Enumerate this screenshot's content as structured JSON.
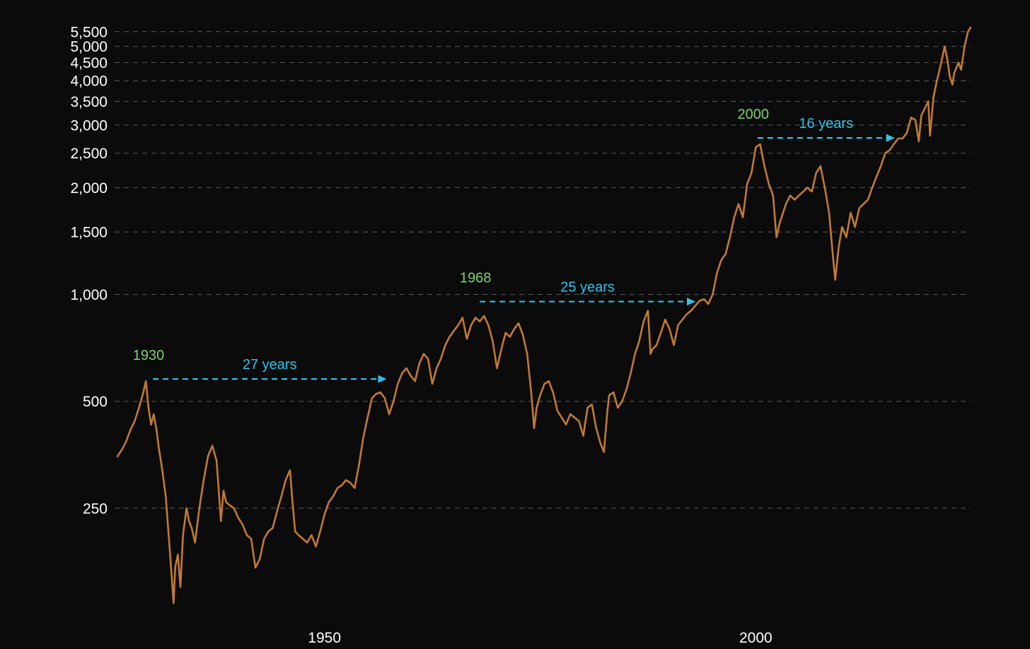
{
  "chart_data": {
    "type": "line",
    "title": "",
    "xlabel": "",
    "ylabel": "",
    "y_scale": "log",
    "ylim": [
      125,
      5700
    ],
    "xlim": [
      1926.0,
      2024.9
    ],
    "grid": true,
    "legend": "none",
    "colors": {
      "background": "#0b0b0b",
      "line": "#c27a35",
      "year_label": "#7ed36a",
      "duration_label": "#2fc3e8",
      "grid": "#5a5a5a",
      "tick": "#ffffff"
    },
    "y_ticks": [
      {
        "value": 250,
        "label": "250"
      },
      {
        "value": 500,
        "label": "500"
      },
      {
        "value": 1000,
        "label": "1,000"
      },
      {
        "value": 1500,
        "label": "1,500"
      },
      {
        "value": 2000,
        "label": "2,000"
      },
      {
        "value": 2500,
        "label": "2,500"
      },
      {
        "value": 3000,
        "label": "3,000"
      },
      {
        "value": 3500,
        "label": "3,500"
      },
      {
        "value": 4000,
        "label": "4,000"
      },
      {
        "value": 4500,
        "label": "4,500"
      },
      {
        "value": 5000,
        "label": "5,000"
      },
      {
        "value": 5500,
        "label": "5,500"
      }
    ],
    "x_ticks": [
      {
        "value": 1950,
        "label": "1950"
      },
      {
        "value": 2000,
        "label": "2000"
      }
    ],
    "series": [
      {
        "values": [
          [
            1926.0,
            350
          ],
          [
            1926.5,
            365
          ],
          [
            1927.0,
            385
          ],
          [
            1927.5,
            415
          ],
          [
            1928.0,
            440
          ],
          [
            1928.5,
            480
          ],
          [
            1929.0,
            530
          ],
          [
            1929.3,
            570
          ],
          [
            1929.6,
            480
          ],
          [
            1929.9,
            430
          ],
          [
            1930.2,
            460
          ],
          [
            1930.5,
            420
          ],
          [
            1930.8,
            370
          ],
          [
            1931.2,
            320
          ],
          [
            1931.6,
            270
          ],
          [
            1932.0,
            200
          ],
          [
            1932.3,
            160
          ],
          [
            1932.5,
            135
          ],
          [
            1932.7,
            170
          ],
          [
            1933.0,
            185
          ],
          [
            1933.3,
            150
          ],
          [
            1933.6,
            210
          ],
          [
            1934.0,
            250
          ],
          [
            1934.3,
            230
          ],
          [
            1934.6,
            220
          ],
          [
            1935.0,
            200
          ],
          [
            1935.5,
            250
          ],
          [
            1936.0,
            300
          ],
          [
            1936.5,
            350
          ],
          [
            1937.0,
            375
          ],
          [
            1937.5,
            340
          ],
          [
            1938.0,
            230
          ],
          [
            1938.3,
            280
          ],
          [
            1938.6,
            260
          ],
          [
            1939.0,
            255
          ],
          [
            1939.5,
            250
          ],
          [
            1940.0,
            235
          ],
          [
            1940.5,
            225
          ],
          [
            1941.0,
            210
          ],
          [
            1941.5,
            205
          ],
          [
            1942.0,
            170
          ],
          [
            1942.5,
            180
          ],
          [
            1943.0,
            205
          ],
          [
            1943.5,
            215
          ],
          [
            1944.0,
            220
          ],
          [
            1944.5,
            245
          ],
          [
            1945.0,
            270
          ],
          [
            1945.5,
            300
          ],
          [
            1946.0,
            320
          ],
          [
            1946.3,
            260
          ],
          [
            1946.6,
            215
          ],
          [
            1947.0,
            210
          ],
          [
            1947.5,
            205
          ],
          [
            1948.0,
            200
          ],
          [
            1948.5,
            210
          ],
          [
            1949.0,
            195
          ],
          [
            1949.5,
            215
          ],
          [
            1950.0,
            240
          ],
          [
            1950.5,
            260
          ],
          [
            1951.0,
            270
          ],
          [
            1951.5,
            285
          ],
          [
            1952.0,
            290
          ],
          [
            1952.5,
            300
          ],
          [
            1953.0,
            295
          ],
          [
            1953.5,
            285
          ],
          [
            1954.0,
            330
          ],
          [
            1954.5,
            395
          ],
          [
            1955.0,
            450
          ],
          [
            1955.5,
            510
          ],
          [
            1956.0,
            525
          ],
          [
            1956.5,
            530
          ],
          [
            1957.0,
            510
          ],
          [
            1957.5,
            460
          ],
          [
            1958.0,
            500
          ],
          [
            1958.5,
            560
          ],
          [
            1959.0,
            600
          ],
          [
            1959.5,
            620
          ],
          [
            1960.0,
            590
          ],
          [
            1960.5,
            570
          ],
          [
            1961.0,
            640
          ],
          [
            1961.5,
            680
          ],
          [
            1962.0,
            660
          ],
          [
            1962.5,
            560
          ],
          [
            1963.0,
            620
          ],
          [
            1963.5,
            660
          ],
          [
            1964.0,
            720
          ],
          [
            1964.5,
            760
          ],
          [
            1965.0,
            790
          ],
          [
            1965.5,
            820
          ],
          [
            1966.0,
            860
          ],
          [
            1966.5,
            750
          ],
          [
            1967.0,
            820
          ],
          [
            1967.5,
            860
          ],
          [
            1968.0,
            840
          ],
          [
            1968.5,
            870
          ],
          [
            1969.0,
            820
          ],
          [
            1969.5,
            740
          ],
          [
            1970.0,
            620
          ],
          [
            1970.5,
            700
          ],
          [
            1971.0,
            780
          ],
          [
            1971.5,
            760
          ],
          [
            1972.0,
            800
          ],
          [
            1972.5,
            830
          ],
          [
            1973.0,
            770
          ],
          [
            1973.5,
            680
          ],
          [
            1974.0,
            520
          ],
          [
            1974.3,
            420
          ],
          [
            1974.6,
            480
          ],
          [
            1975.0,
            520
          ],
          [
            1975.5,
            560
          ],
          [
            1976.0,
            570
          ],
          [
            1976.5,
            530
          ],
          [
            1977.0,
            470
          ],
          [
            1977.5,
            450
          ],
          [
            1978.0,
            430
          ],
          [
            1978.5,
            460
          ],
          [
            1979.0,
            450
          ],
          [
            1979.5,
            440
          ],
          [
            1980.0,
            400
          ],
          [
            1980.5,
            480
          ],
          [
            1981.0,
            490
          ],
          [
            1981.5,
            420
          ],
          [
            1982.0,
            380
          ],
          [
            1982.4,
            360
          ],
          [
            1982.8,
            470
          ],
          [
            1983.0,
            520
          ],
          [
            1983.5,
            530
          ],
          [
            1984.0,
            480
          ],
          [
            1984.5,
            500
          ],
          [
            1985.0,
            540
          ],
          [
            1985.5,
            600
          ],
          [
            1986.0,
            680
          ],
          [
            1986.5,
            740
          ],
          [
            1987.0,
            840
          ],
          [
            1987.5,
            900
          ],
          [
            1987.8,
            680
          ],
          [
            1988.0,
            700
          ],
          [
            1988.5,
            720
          ],
          [
            1989.0,
            780
          ],
          [
            1989.5,
            850
          ],
          [
            1990.0,
            800
          ],
          [
            1990.5,
            720
          ],
          [
            1991.0,
            820
          ],
          [
            1991.5,
            850
          ],
          [
            1992.0,
            880
          ],
          [
            1992.5,
            900
          ],
          [
            1993.0,
            930
          ],
          [
            1993.5,
            960
          ],
          [
            1994.0,
            970
          ],
          [
            1994.5,
            940
          ],
          [
            1995.0,
            1000
          ],
          [
            1995.5,
            1150
          ],
          [
            1996.0,
            1250
          ],
          [
            1996.5,
            1300
          ],
          [
            1997.0,
            1450
          ],
          [
            1997.5,
            1650
          ],
          [
            1998.0,
            1800
          ],
          [
            1998.5,
            1650
          ],
          [
            1999.0,
            2050
          ],
          [
            1999.5,
            2200
          ],
          [
            2000.0,
            2600
          ],
          [
            2000.5,
            2650
          ],
          [
            2001.0,
            2300
          ],
          [
            2001.5,
            2050
          ],
          [
            2002.0,
            1900
          ],
          [
            2002.4,
            1450
          ],
          [
            2002.8,
            1600
          ],
          [
            2003.0,
            1650
          ],
          [
            2003.5,
            1800
          ],
          [
            2004.0,
            1900
          ],
          [
            2004.5,
            1850
          ],
          [
            2005.0,
            1900
          ],
          [
            2005.5,
            1950
          ],
          [
            2006.0,
            2000
          ],
          [
            2006.5,
            1950
          ],
          [
            2007.0,
            2200
          ],
          [
            2007.5,
            2300
          ],
          [
            2008.0,
            2000
          ],
          [
            2008.5,
            1700
          ],
          [
            2008.8,
            1400
          ],
          [
            2009.2,
            1100
          ],
          [
            2009.6,
            1350
          ],
          [
            2010.0,
            1550
          ],
          [
            2010.5,
            1450
          ],
          [
            2011.0,
            1700
          ],
          [
            2011.5,
            1550
          ],
          [
            2012.0,
            1750
          ],
          [
            2012.5,
            1800
          ],
          [
            2013.0,
            1850
          ],
          [
            2013.5,
            2000
          ],
          [
            2014.0,
            2150
          ],
          [
            2014.5,
            2300
          ],
          [
            2015.0,
            2500
          ],
          [
            2015.5,
            2550
          ],
          [
            2016.0,
            2650
          ],
          [
            2016.5,
            2750
          ],
          [
            2017.0,
            2750
          ],
          [
            2017.5,
            2850
          ],
          [
            2018.0,
            3150
          ],
          [
            2018.5,
            3100
          ],
          [
            2018.9,
            2700
          ],
          [
            2019.2,
            3200
          ],
          [
            2019.6,
            3350
          ],
          [
            2020.0,
            3500
          ],
          [
            2020.2,
            2800
          ],
          [
            2020.6,
            3600
          ],
          [
            2021.0,
            4000
          ],
          [
            2021.5,
            4500
          ],
          [
            2021.9,
            5000
          ],
          [
            2022.2,
            4600
          ],
          [
            2022.5,
            4100
          ],
          [
            2022.8,
            3900
          ],
          [
            2023.0,
            4200
          ],
          [
            2023.5,
            4500
          ],
          [
            2023.8,
            4300
          ],
          [
            2024.2,
            5000
          ],
          [
            2024.6,
            5500
          ],
          [
            2024.9,
            5650
          ]
        ]
      }
    ],
    "annotations": [
      {
        "year_label": "1930",
        "duration_label": "27 years",
        "from": [
          1930.1,
          578
        ],
        "to": [
          1957.2,
          578
        ]
      },
      {
        "year_label": "1968",
        "duration_label": "25 years",
        "from": [
          1968.0,
          955
        ],
        "to": [
          1993.0,
          955
        ]
      },
      {
        "year_label": "2000",
        "duration_label": "16 years",
        "from": [
          2000.2,
          2760
        ],
        "to": [
          2016.1,
          2760
        ]
      }
    ]
  }
}
